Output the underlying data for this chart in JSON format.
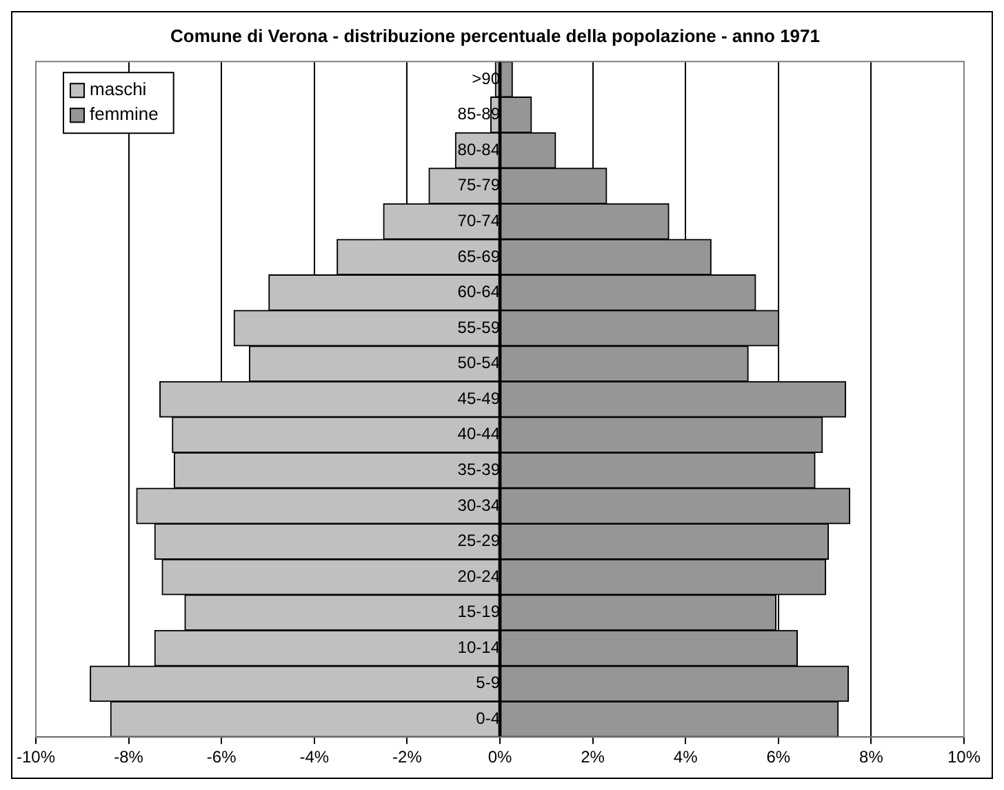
{
  "chart_data": {
    "type": "bar",
    "title": "Comune di Verona - distribuzione percentuale della popolazione - anno 1971",
    "orientation": "horizontal",
    "stacked": true,
    "categories": [
      ">90",
      "85-89",
      "80-84",
      "75-79",
      "70-74",
      "65-69",
      "60-64",
      "55-59",
      "50-54",
      "45-49",
      "40-44",
      "35-39",
      "30-34",
      "25-29",
      "20-24",
      "15-19",
      "10-14",
      "5-9",
      "0-4"
    ],
    "series": [
      {
        "name": "maschi",
        "color": "#c0c0c0",
        "values": [
          -0.1,
          -0.2,
          -0.96,
          -1.53,
          -2.51,
          -3.51,
          -4.98,
          -5.73,
          -5.4,
          -7.33,
          -7.06,
          -7.02,
          -7.83,
          -7.44,
          -7.28,
          -6.79,
          -7.44,
          -8.83,
          -8.39
        ]
      },
      {
        "name": "femmine",
        "color": "#969696",
        "values": [
          0.27,
          0.68,
          1.2,
          2.3,
          3.64,
          4.55,
          5.51,
          6.01,
          5.35,
          7.45,
          6.95,
          6.79,
          7.54,
          7.08,
          7.02,
          5.95,
          6.41,
          7.51,
          7.29
        ]
      }
    ],
    "xlim": [
      -10,
      10
    ],
    "xticks": [
      {
        "value": -10,
        "label": "-10%"
      },
      {
        "value": -8,
        "label": "-8%"
      },
      {
        "value": -6,
        "label": "-6%"
      },
      {
        "value": -4,
        "label": "-4%"
      },
      {
        "value": -2,
        "label": "-2%"
      },
      {
        "value": 0,
        "label": "0%"
      },
      {
        "value": 2,
        "label": "2%"
      },
      {
        "value": 4,
        "label": "4%"
      },
      {
        "value": 6,
        "label": "6%"
      },
      {
        "value": 8,
        "label": "8%"
      },
      {
        "value": 10,
        "label": "10%"
      }
    ],
    "grid": "x",
    "legend": "top left"
  }
}
